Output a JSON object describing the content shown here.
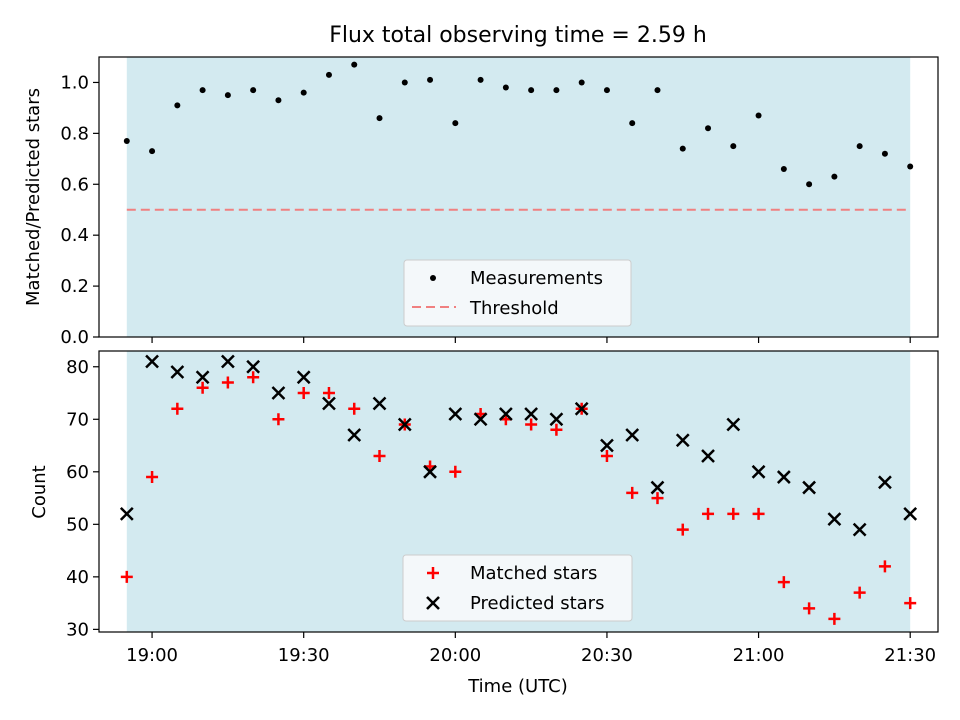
{
  "title": "Flux total observing time = 2.59 h",
  "colors": {
    "shade": "#d3eaf0",
    "threshold": "#f08080",
    "matched": "#ff0000",
    "predicted": "#000000",
    "measurement": "#000000"
  },
  "chart_data": [
    {
      "type": "scatter",
      "panel": "top",
      "ylabel": "Matched/Predicted stars",
      "ylim": [
        0.0,
        1.1
      ],
      "yticks": [
        "0.0",
        "0.2",
        "0.4",
        "0.6",
        "0.8",
        "1.0"
      ],
      "grid": false,
      "legend": {
        "placement": "lower-center",
        "entries": [
          "Measurements",
          "Threshold"
        ]
      },
      "x": [
        "18:55",
        "19:00",
        "19:05",
        "19:10",
        "19:15",
        "19:20",
        "19:25",
        "19:30",
        "19:35",
        "19:40",
        "19:45",
        "19:50",
        "19:55",
        "20:00",
        "20:05",
        "20:10",
        "20:15",
        "20:20",
        "20:25",
        "20:30",
        "20:35",
        "20:40",
        "20:45",
        "20:50",
        "20:55",
        "21:00",
        "21:05",
        "21:10",
        "21:15",
        "21:20",
        "21:25",
        "21:30"
      ],
      "series": [
        {
          "name": "Measurements",
          "values": [
            0.77,
            0.73,
            0.91,
            0.97,
            0.95,
            0.97,
            0.93,
            0.96,
            1.03,
            1.07,
            0.86,
            1.0,
            1.01,
            0.84,
            1.01,
            0.98,
            0.97,
            0.97,
            1.0,
            0.97,
            0.84,
            0.97,
            0.74,
            0.82,
            0.75,
            0.87,
            0.66,
            0.6,
            0.63,
            0.75,
            0.72,
            0.67
          ]
        },
        {
          "name": "Threshold",
          "value": 0.5
        }
      ]
    },
    {
      "type": "scatter",
      "panel": "bottom",
      "xlabel": "Time (UTC)",
      "ylabel": "Count",
      "ylim": [
        29.5,
        83
      ],
      "yticks": [
        "30",
        "40",
        "50",
        "60",
        "70",
        "80"
      ],
      "xticks": [
        "19:00",
        "19:30",
        "20:00",
        "20:30",
        "21:00",
        "21:30"
      ],
      "grid": false,
      "legend": {
        "placement": "lower-center",
        "entries": [
          "Matched stars",
          "Predicted stars"
        ]
      },
      "x": [
        "18:55",
        "19:00",
        "19:05",
        "19:10",
        "19:15",
        "19:20",
        "19:25",
        "19:30",
        "19:35",
        "19:40",
        "19:45",
        "19:50",
        "19:55",
        "20:00",
        "20:05",
        "20:10",
        "20:15",
        "20:20",
        "20:25",
        "20:30",
        "20:35",
        "20:40",
        "20:45",
        "20:50",
        "20:55",
        "21:00",
        "21:05",
        "21:10",
        "21:15",
        "21:20",
        "21:25",
        "21:30"
      ],
      "series": [
        {
          "name": "Matched stars",
          "values": [
            40,
            59,
            72,
            76,
            77,
            78,
            70,
            75,
            75,
            72,
            63,
            69,
            61,
            60,
            71,
            70,
            69,
            68,
            72,
            63,
            56,
            55,
            49,
            52,
            52,
            52,
            39,
            34,
            32,
            37,
            42,
            35
          ]
        },
        {
          "name": "Predicted stars",
          "values": [
            52,
            81,
            79,
            78,
            81,
            80,
            75,
            78,
            73,
            67,
            73,
            69,
            60,
            71,
            70,
            71,
            71,
            70,
            72,
            65,
            67,
            57,
            66,
            63,
            69,
            60,
            59,
            57,
            51,
            49,
            58,
            52
          ]
        }
      ]
    }
  ]
}
